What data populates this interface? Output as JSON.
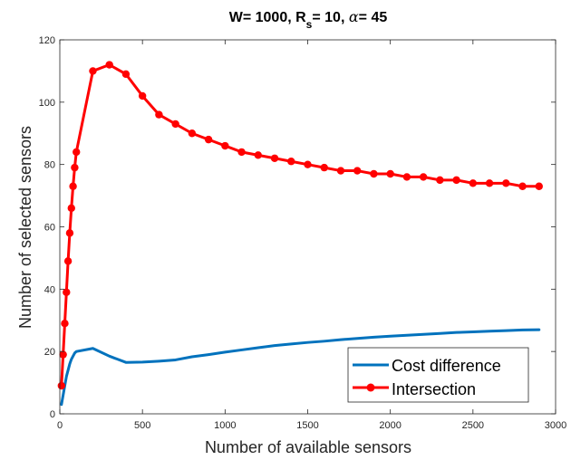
{
  "chart_data": {
    "type": "line",
    "title": "W= 1000, R",
    "title_sub": "s",
    "title_mid": "= 10, ",
    "title_greek": "α",
    "title_end": "= 45",
    "xlabel": "Number of available sensors",
    "ylabel": "Number of selected sensors",
    "xlim": [
      0,
      3000
    ],
    "ylim": [
      0,
      120
    ],
    "xticks": [
      0,
      500,
      1000,
      1500,
      2000,
      2500,
      3000
    ],
    "yticks": [
      0,
      20,
      40,
      60,
      80,
      100,
      120
    ],
    "grid": false,
    "legend_position": "bottom-right",
    "series": [
      {
        "name": "Cost difference",
        "color": "#0072BD",
        "marker": false,
        "x": [
          10,
          20,
          30,
          40,
          50,
          60,
          70,
          80,
          90,
          100,
          200,
          300,
          400,
          500,
          600,
          700,
          800,
          900,
          1000,
          1100,
          1200,
          1300,
          1400,
          1500,
          1600,
          1700,
          1800,
          1900,
          2000,
          2100,
          2200,
          2300,
          2400,
          2500,
          2600,
          2700,
          2800,
          2900
        ],
        "y": [
          3,
          6,
          9,
          12,
          14,
          16,
          17.5,
          18.5,
          19.5,
          20,
          21,
          18.5,
          16.5,
          16.6,
          16.9,
          17.3,
          18.3,
          19,
          19.8,
          20.5,
          21.2,
          21.9,
          22.4,
          22.9,
          23.3,
          23.8,
          24.2,
          24.6,
          24.9,
          25.2,
          25.5,
          25.8,
          26.1,
          26.3,
          26.5,
          26.7,
          26.9,
          27
        ]
      },
      {
        "name": "Intersection",
        "color": "#FF0000",
        "marker": true,
        "x": [
          10,
          20,
          30,
          40,
          50,
          60,
          70,
          80,
          90,
          100,
          200,
          300,
          400,
          500,
          600,
          700,
          800,
          900,
          1000,
          1100,
          1200,
          1300,
          1400,
          1500,
          1600,
          1700,
          1800,
          1900,
          2000,
          2100,
          2200,
          2300,
          2400,
          2500,
          2600,
          2700,
          2800,
          2900
        ],
        "y": [
          9,
          19,
          29,
          39,
          49,
          58,
          66,
          73,
          79,
          84,
          110,
          112,
          109,
          102,
          96,
          93,
          90,
          88,
          86,
          84,
          83,
          82,
          81,
          80,
          79,
          78,
          78,
          77,
          77,
          76,
          76,
          75,
          75,
          74,
          74,
          74,
          73,
          73
        ]
      }
    ]
  }
}
